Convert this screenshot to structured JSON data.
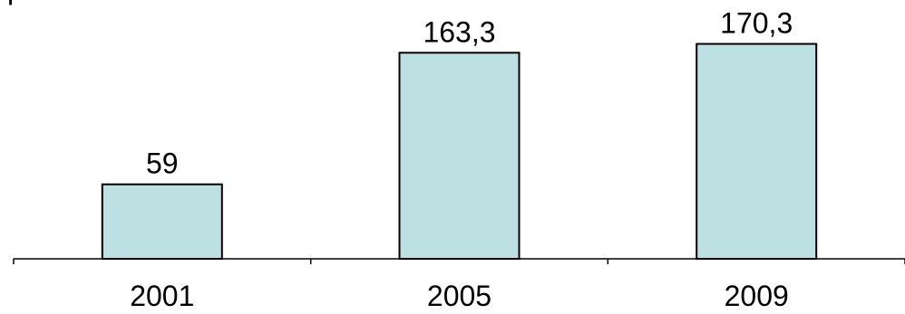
{
  "colors": {
    "bar_fill": "#bde0e2",
    "bar_stroke": "#000000",
    "axis": "#000000",
    "text": "#000000"
  },
  "chart_data": {
    "type": "bar",
    "categories": [
      "2001",
      "2005",
      "2009"
    ],
    "values": [
      59,
      163.3,
      170.3
    ],
    "data_labels": [
      "59",
      "163,3",
      "170,3"
    ],
    "title": "",
    "xlabel": "",
    "ylabel": "",
    "ylim": [
      0,
      185
    ],
    "grid": false,
    "legend": "none"
  }
}
